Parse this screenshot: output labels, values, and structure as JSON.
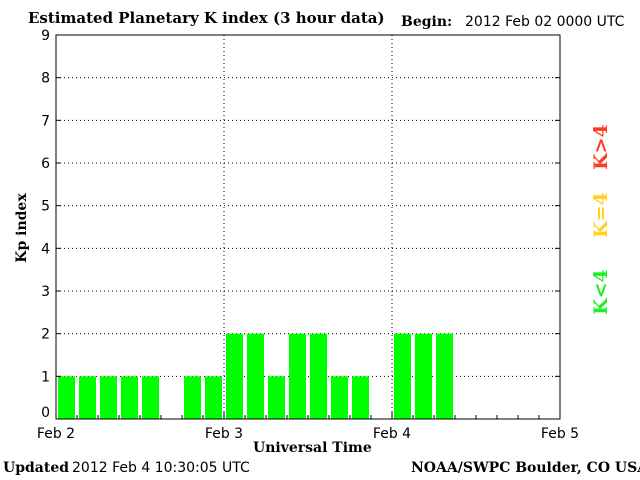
{
  "header": {
    "title": "Estimated Planetary K index (3 hour data)",
    "begin_label": "Begin:",
    "begin_value": "2012 Feb 02 0000 UTC"
  },
  "footer": {
    "updated_label": "Updated",
    "updated_value": "2012 Feb  4 10:30:05 UTC",
    "credit": "NOAA/SWPC Boulder, CO USA"
  },
  "legend": {
    "high": {
      "label": "K>4",
      "color": "#ff3b1f"
    },
    "equal": {
      "label": "K=4",
      "color": "#ffd21f"
    },
    "low": {
      "label": "K<4",
      "color": "#22ee22"
    }
  },
  "chart_data": {
    "type": "bar",
    "title": "Estimated Planetary K index (3 hour data)",
    "xlabel": "Universal Time",
    "ylabel": "Kp index",
    "ylim": [
      0,
      9
    ],
    "yticks": [
      "0",
      "1",
      "2",
      "3",
      "4",
      "5",
      "6",
      "7",
      "8",
      "9"
    ],
    "xticks": [
      "Feb 2",
      "Feb 3",
      "Feb 4",
      "Feb 5"
    ],
    "x_interval_hours": 3,
    "bar_color": "#00ff00",
    "grid": "dotted, vertical at day boundaries and horizontal at each Kp unit",
    "series": [
      {
        "name": "",
        "values": [
          1,
          1,
          1,
          1,
          1,
          null,
          1,
          1,
          2,
          2,
          1,
          2,
          2,
          1,
          1,
          null,
          2,
          2,
          2
        ]
      }
    ]
  }
}
